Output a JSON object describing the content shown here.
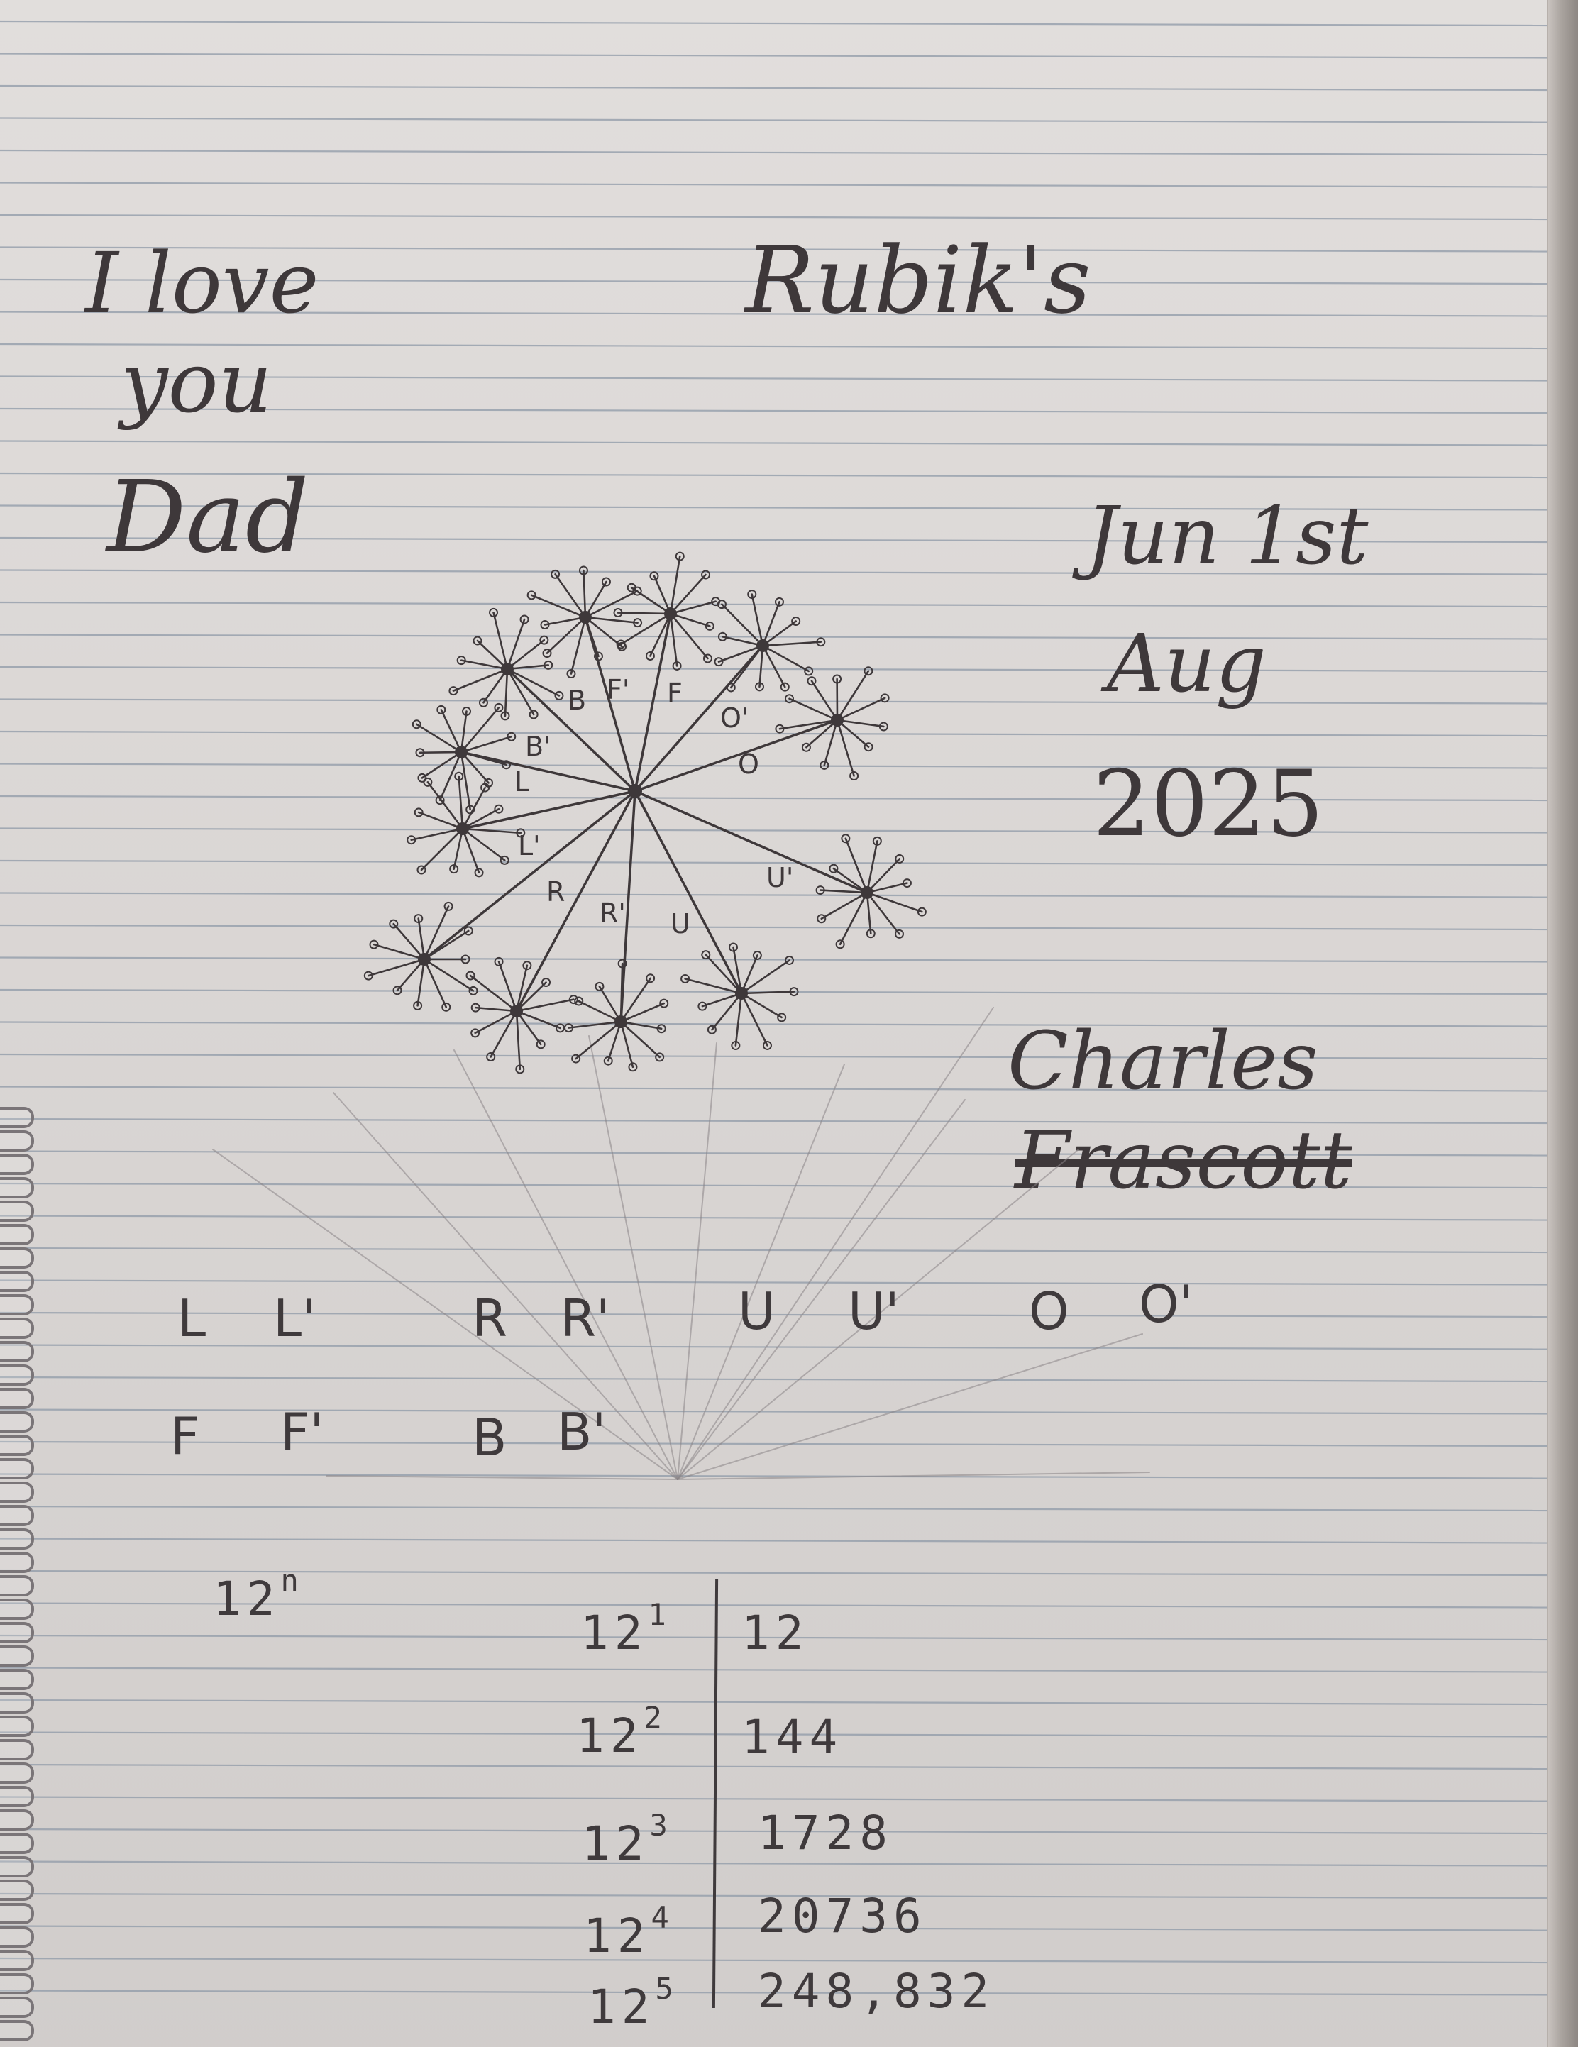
{
  "note": {
    "greeting": [
      "I love",
      "you",
      "Dad"
    ],
    "title": "Rubik's",
    "date": [
      "Jun 1st",
      "Aug",
      "2025"
    ],
    "signature": [
      "Charles",
      "Frascott"
    ]
  },
  "diagram": {
    "edge_labels": [
      "B",
      "F'",
      "F",
      "B'",
      "O'",
      "O",
      "L",
      "L'",
      "R",
      "R'",
      "U",
      "U'"
    ]
  },
  "moves": {
    "row1": [
      "L",
      "L'",
      "R",
      "R'",
      "U",
      "U'",
      "O",
      "O'"
    ],
    "row2": [
      "F",
      "F'",
      "B",
      "B'"
    ]
  },
  "powers": {
    "formula_base": "12",
    "formula_exp": "n",
    "rows": [
      {
        "base": "12",
        "exp": "1",
        "value": "12"
      },
      {
        "base": "12",
        "exp": "2",
        "value": "144"
      },
      {
        "base": "12",
        "exp": "3",
        "value": "1728"
      },
      {
        "base": "12",
        "exp": "4",
        "value": "20736"
      },
      {
        "base": "12",
        "exp": "5",
        "value": "248,832"
      }
    ]
  },
  "colors": {
    "ink": "#3e383a",
    "pencil": "#8a8487",
    "rule": "#8f9aa8",
    "paper": "#dedad8"
  }
}
